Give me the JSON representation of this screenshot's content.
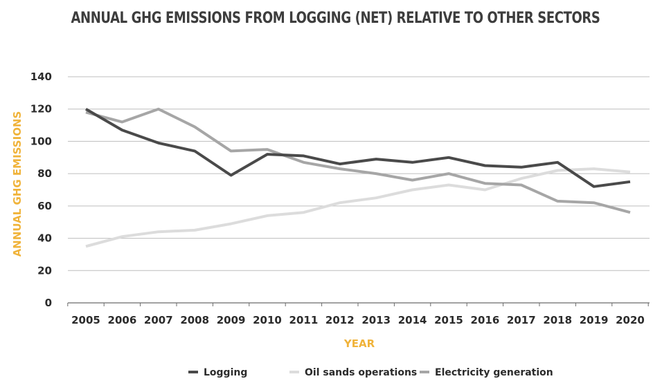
{
  "chart_data": {
    "type": "line",
    "title": "ANNUAL GHG EMISSIONS FROM LOGGING (NET) RELATIVE TO OTHER SECTORS",
    "xlabel": "YEAR",
    "ylabel": "ANNUAL GHG EMISSIONS",
    "x": [
      2005,
      2006,
      2007,
      2008,
      2009,
      2010,
      2011,
      2012,
      2013,
      2014,
      2015,
      2016,
      2017,
      2018,
      2019,
      2020
    ],
    "ylim": [
      0,
      140
    ],
    "yticks": [
      0,
      20,
      40,
      60,
      80,
      100,
      120,
      140
    ],
    "grid": true,
    "legend_position": "bottom",
    "series": [
      {
        "name": "Logging",
        "color": "#4a4a4a",
        "values": [
          120,
          107,
          99,
          94,
          79,
          92,
          91,
          86,
          89,
          87,
          90,
          85,
          84,
          87,
          72,
          75
        ]
      },
      {
        "name": "Oil sands operations",
        "color": "#dcdcdc",
        "values": [
          35,
          41,
          44,
          45,
          49,
          54,
          56,
          62,
          65,
          70,
          73,
          70,
          77,
          82,
          83,
          81
        ]
      },
      {
        "name": "Electricity generation",
        "color": "#a6a6a6",
        "values": [
          118,
          112,
          120,
          109,
          94,
          95,
          87,
          83,
          80,
          76,
          80,
          74,
          73,
          63,
          62,
          56
        ]
      }
    ]
  }
}
